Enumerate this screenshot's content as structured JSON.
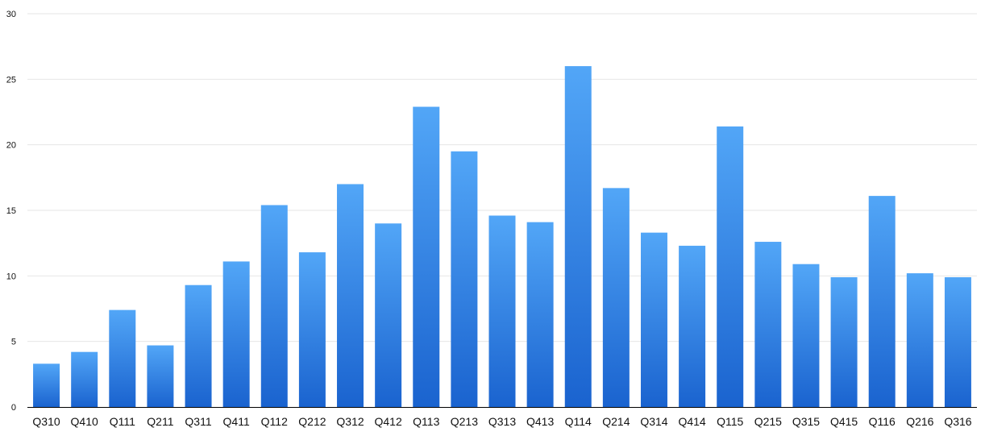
{
  "chart_data": {
    "type": "bar",
    "title": "",
    "xlabel": "",
    "ylabel": "",
    "ylim": [
      0,
      30
    ],
    "yticks": [
      0,
      5,
      10,
      15,
      20,
      25,
      30
    ],
    "grid": true,
    "legend": "none",
    "categories": [
      "Q310",
      "Q410",
      "Q111",
      "Q211",
      "Q311",
      "Q411",
      "Q112",
      "Q212",
      "Q312",
      "Q412",
      "Q113",
      "Q213",
      "Q313",
      "Q413",
      "Q114",
      "Q214",
      "Q314",
      "Q414",
      "Q115",
      "Q215",
      "Q315",
      "Q415",
      "Q116",
      "Q216",
      "Q316"
    ],
    "values": [
      3.3,
      4.2,
      7.4,
      4.7,
      9.3,
      11.1,
      15.4,
      11.8,
      17.0,
      14.0,
      22.9,
      19.5,
      14.6,
      14.1,
      26.0,
      16.7,
      13.3,
      12.3,
      21.4,
      12.6,
      10.9,
      9.9,
      16.1,
      10.2,
      9.9
    ],
    "colors": {
      "bar_top": "#52a6f7",
      "bar_bottom": "#1a63cf",
      "grid": "#e6e6e6",
      "axis": "#000000"
    }
  }
}
